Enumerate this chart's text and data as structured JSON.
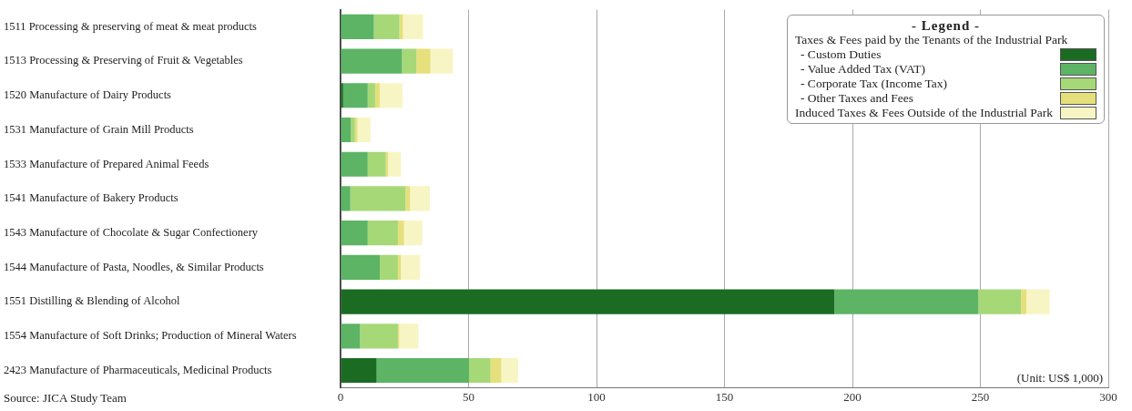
{
  "chart_data": {
    "type": "bar",
    "orientation": "horizontal",
    "stacked": true,
    "categories": [
      "1511 Processing & preserving of meat & meat products",
      "1513 Processing & Preserving of Fruit & Vegetables",
      "1520 Manufacture of Dairy Products",
      "1531 Manufacture of Grain Mill Products",
      "1533 Manufacture of Prepared Animal Feeds",
      "1541 Manufacture of Bakery Products",
      "1543 Manufacture of Chocolate & Sugar Confectionery",
      "1544 Manufacture of Pasta, Noodles, & Similar Products",
      "1551 Distilling & Blending of Alcohol",
      "1554 Manufacture of Soft Drinks; Production of Mineral Waters",
      "2423 Manufacture of Pharmaceuticals, Medicinal Products"
    ],
    "series": [
      {
        "name": "- Custom Duties",
        "color": "#1b6b22",
        "values": [
          0,
          0,
          1,
          0,
          0,
          0,
          0,
          0,
          193,
          0,
          14.1
        ]
      },
      {
        "name": "- Value Added Tax (VAT)",
        "color": "#5cb464",
        "values": [
          13,
          24,
          9.6,
          4,
          10.6,
          3.8,
          10.6,
          15.3,
          56.2,
          7.6,
          36.1
        ]
      },
      {
        "name": "- Corporate Tax (Income Tax)",
        "color": "#a6d878",
        "values": [
          10,
          5.6,
          2.9,
          1.6,
          7.1,
          21.6,
          11.8,
          7.1,
          16.7,
          14.8,
          8.4
        ]
      },
      {
        "name": "- Other Taxes and Fees",
        "color": "#e6e07c",
        "values": [
          1.4,
          5.5,
          1.8,
          1,
          0.9,
          1.8,
          2.4,
          1.2,
          2.1,
          0.5,
          4.2
        ]
      },
      {
        "name": "Induced Taxes & Fees Outside of the Industrial Park",
        "color": "#f8f5c4",
        "values": [
          7.8,
          8.8,
          8.9,
          5.1,
          5,
          7.7,
          7.1,
          7.5,
          9.1,
          7.5,
          6.6
        ]
      }
    ],
    "xlim": [
      0,
      300
    ],
    "xticks": [
      0,
      50,
      100,
      150,
      200,
      250,
      300
    ],
    "grid": "x",
    "legend": "top right",
    "legend_title": "- Legend -",
    "annotations": [
      "Taxes & Fees paid by the Tenants of the Industrial Park",
      "(Unit: US$ 1,000)",
      "Source: JICA Study Team"
    ]
  }
}
